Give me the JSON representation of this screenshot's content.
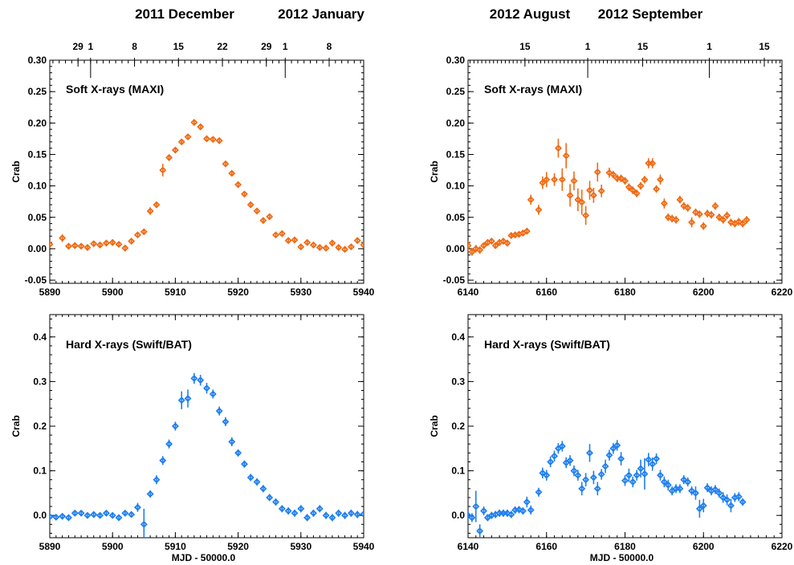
{
  "header": {
    "left_month_1": "2011 December",
    "left_month_2": "2012 January",
    "right_month_1": "2012 August",
    "right_month_2": "2012 September"
  },
  "chart_data": [
    {
      "type": "scatter",
      "panel": "top-left",
      "title": "Soft X-rays (MAXI)",
      "ylabel": "Crab",
      "xlabel": "",
      "xlim": [
        5890,
        5940
      ],
      "ylim": [
        -0.055,
        0.3
      ],
      "xticks": [
        5890,
        5900,
        5910,
        5920,
        5930,
        5940
      ],
      "yticks": [
        -0.05,
        0.0,
        0.05,
        0.1,
        0.15,
        0.2,
        0.25,
        0.3
      ],
      "ytick_labels": [
        "-0.05",
        "0.00",
        "0.05",
        "0.10",
        "0.15",
        "0.20",
        "0.25",
        "0.30"
      ],
      "top_ticks": [
        {
          "mjd": 5894.5,
          "label": "29"
        },
        {
          "mjd": 5896.5,
          "label": "1"
        },
        {
          "mjd": 5903.5,
          "label": "8"
        },
        {
          "mjd": 5910.5,
          "label": "15"
        },
        {
          "mjd": 5917.5,
          "label": "22"
        },
        {
          "mjd": 5924.5,
          "label": "29"
        },
        {
          "mjd": 5927.5,
          "label": "1"
        },
        {
          "mjd": 5934.5,
          "label": "8"
        }
      ],
      "color": "#f06a14",
      "series": [
        {
          "x": [
            5890,
            5892,
            5893,
            5894,
            5895,
            5896,
            5897,
            5898,
            5899,
            5900,
            5901,
            5902,
            5903,
            5904,
            5905,
            5906,
            5907,
            5908,
            5909,
            5910,
            5911,
            5912,
            5913,
            5914,
            5915,
            5916,
            5917,
            5918,
            5919,
            5920,
            5921,
            5922,
            5923,
            5924,
            5925,
            5926,
            5927,
            5928,
            5929,
            5930,
            5931,
            5932,
            5933,
            5934,
            5935,
            5936,
            5937,
            5938,
            5939,
            5940
          ],
          "y": [
            0.007,
            0.017,
            0.004,
            0.005,
            0.004,
            0.002,
            0.008,
            0.006,
            0.009,
            0.01,
            0.007,
            0.001,
            0.012,
            0.022,
            0.027,
            0.06,
            0.07,
            0.125,
            0.145,
            0.157,
            0.17,
            0.178,
            0.201,
            0.194,
            0.175,
            0.174,
            0.172,
            0.135,
            0.12,
            0.102,
            0.087,
            0.07,
            0.06,
            0.045,
            0.051,
            0.022,
            0.024,
            0.013,
            0.014,
            0.003,
            0.01,
            0.006,
            0.002,
            0.001,
            0.009,
            0.002,
            -0.001,
            0.003,
            0.013,
            0.006
          ],
          "err": [
            0.004,
            0.006,
            0.004,
            0.004,
            0.004,
            0.004,
            0.004,
            0.004,
            0.004,
            0.004,
            0.004,
            0.004,
            0.004,
            0.004,
            0.004,
            0.006,
            0.004,
            0.01,
            0.004,
            0.004,
            0.004,
            0.004,
            0.004,
            0.004,
            0.004,
            0.004,
            0.004,
            0.004,
            0.004,
            0.004,
            0.004,
            0.004,
            0.004,
            0.004,
            0.004,
            0.004,
            0.004,
            0.004,
            0.004,
            0.004,
            0.004,
            0.004,
            0.004,
            0.004,
            0.004,
            0.004,
            0.004,
            0.004,
            0.004,
            0.004
          ]
        }
      ]
    },
    {
      "type": "scatter",
      "panel": "top-right",
      "title": "Soft X-rays (MAXI)",
      "ylabel": "Crab",
      "xlabel": "",
      "xlim": [
        6140,
        6220
      ],
      "ylim": [
        -0.055,
        0.3
      ],
      "xticks": [
        6140,
        6160,
        6180,
        6200,
        6220
      ],
      "yticks": [
        -0.05,
        0.0,
        0.05,
        0.1,
        0.15,
        0.2,
        0.25,
        0.3
      ],
      "ytick_labels": [
        "-0.05",
        "0.00",
        "0.05",
        "0.10",
        "0.15",
        "0.20",
        "0.25",
        "0.30"
      ],
      "top_ticks": [
        {
          "mjd": 6154.5,
          "label": "15"
        },
        {
          "mjd": 6170.5,
          "label": "1"
        },
        {
          "mjd": 6184.5,
          "label": "15"
        },
        {
          "mjd": 6201.5,
          "label": "1"
        },
        {
          "mjd": 6215.5,
          "label": "15"
        }
      ],
      "color": "#f06a14",
      "series": [
        {
          "x": [
            6140,
            6141,
            6142,
            6143,
            6144,
            6145,
            6146,
            6147,
            6148,
            6149,
            6150,
            6151,
            6152,
            6153,
            6154,
            6155,
            6156,
            6158,
            6159,
            6160,
            6162,
            6163,
            6164,
            6165,
            6166,
            6167,
            6168,
            6169,
            6170,
            6171,
            6172,
            6173,
            6174,
            6176,
            6177,
            6178,
            6179,
            6180,
            6181,
            6182,
            6183,
            6184,
            6185,
            6186,
            6187,
            6188,
            6189,
            6190,
            6191,
            6192,
            6193,
            6194,
            6195,
            6196,
            6197,
            6198,
            6199,
            6200,
            6201,
            6202,
            6203,
            6204,
            6205,
            6206,
            6207,
            6208,
            6209,
            6210,
            6211
          ],
          "y": [
            0.005,
            -0.005,
            0.0,
            -0.002,
            0.005,
            0.01,
            0.012,
            0.005,
            0.01,
            0.012,
            0.009,
            0.021,
            0.022,
            0.023,
            0.025,
            0.028,
            0.078,
            0.062,
            0.105,
            0.11,
            0.11,
            0.16,
            0.11,
            0.148,
            0.085,
            0.108,
            0.078,
            0.074,
            0.053,
            0.093,
            0.085,
            0.122,
            0.092,
            0.121,
            0.118,
            0.112,
            0.112,
            0.108,
            0.098,
            0.093,
            0.088,
            0.1,
            0.11,
            0.136,
            0.136,
            0.095,
            0.11,
            0.072,
            0.05,
            0.048,
            0.046,
            0.078,
            0.068,
            0.065,
            0.042,
            0.058,
            0.055,
            0.036,
            0.056,
            0.054,
            0.068,
            0.05,
            0.046,
            0.053,
            0.042,
            0.04,
            0.043,
            0.04,
            0.046
          ],
          "err": [
            0.008,
            0.006,
            0.006,
            0.006,
            0.005,
            0.005,
            0.005,
            0.005,
            0.005,
            0.005,
            0.005,
            0.005,
            0.005,
            0.005,
            0.005,
            0.005,
            0.008,
            0.008,
            0.01,
            0.012,
            0.01,
            0.015,
            0.018,
            0.02,
            0.018,
            0.015,
            0.018,
            0.02,
            0.015,
            0.015,
            0.012,
            0.015,
            0.01,
            0.008,
            0.006,
            0.006,
            0.006,
            0.006,
            0.006,
            0.006,
            0.006,
            0.006,
            0.006,
            0.008,
            0.008,
            0.006,
            0.008,
            0.008,
            0.006,
            0.006,
            0.006,
            0.006,
            0.006,
            0.006,
            0.008,
            0.006,
            0.006,
            0.006,
            0.006,
            0.006,
            0.006,
            0.006,
            0.006,
            0.006,
            0.006,
            0.006,
            0.006,
            0.006,
            0.006
          ]
        }
      ]
    },
    {
      "type": "scatter",
      "panel": "bottom-left",
      "title": "Hard X-rays (Swift/BAT)",
      "ylabel": "Crab",
      "xlabel": "MJD -  50000.0",
      "xlim": [
        5890,
        5940
      ],
      "ylim": [
        -0.05,
        0.45
      ],
      "xticks": [
        5890,
        5900,
        5910,
        5920,
        5930,
        5940
      ],
      "yticks": [
        0.0,
        0.1,
        0.2,
        0.3,
        0.4
      ],
      "ytick_labels": [
        "0.0",
        "0.1",
        "0.2",
        "0.3",
        "0.4"
      ],
      "color": "#1f7ff0",
      "series": [
        {
          "x": [
            5890,
            5891,
            5892,
            5893,
            5894,
            5895,
            5896,
            5897,
            5898,
            5899,
            5900,
            5901,
            5902,
            5903,
            5904,
            5905,
            5906,
            5907,
            5908,
            5909,
            5910,
            5911,
            5912,
            5913,
            5914,
            5915,
            5916,
            5917,
            5918,
            5919,
            5920,
            5921,
            5922,
            5923,
            5924,
            5925,
            5926,
            5927,
            5928,
            5929,
            5930,
            5931,
            5932,
            5933,
            5934,
            5935,
            5936,
            5937,
            5938,
            5939,
            5940
          ],
          "y": [
            -0.003,
            -0.004,
            -0.002,
            -0.005,
            0.005,
            0.005,
            0.0,
            0.002,
            0.0,
            0.005,
            0.0,
            -0.005,
            0.005,
            0.002,
            0.018,
            -0.02,
            0.048,
            0.08,
            0.123,
            0.16,
            0.2,
            0.258,
            0.262,
            0.307,
            0.303,
            0.285,
            0.272,
            0.234,
            0.21,
            0.165,
            0.14,
            0.115,
            0.085,
            0.075,
            0.06,
            0.04,
            0.03,
            0.015,
            0.01,
            0.005,
            0.015,
            -0.005,
            0.005,
            0.015,
            0.0,
            -0.005,
            0.005,
            0.0,
            0.005,
            0.002,
            0.003
          ],
          "err": [
            0.006,
            0.006,
            0.006,
            0.006,
            0.006,
            0.006,
            0.006,
            0.006,
            0.006,
            0.006,
            0.006,
            0.006,
            0.006,
            0.006,
            0.01,
            0.035,
            0.008,
            0.01,
            0.01,
            0.01,
            0.01,
            0.02,
            0.02,
            0.012,
            0.012,
            0.012,
            0.01,
            0.01,
            0.01,
            0.01,
            0.008,
            0.008,
            0.008,
            0.008,
            0.008,
            0.008,
            0.008,
            0.008,
            0.008,
            0.008,
            0.008,
            0.008,
            0.008,
            0.008,
            0.008,
            0.008,
            0.008,
            0.008,
            0.008,
            0.008,
            0.008
          ]
        }
      ]
    },
    {
      "type": "scatter",
      "panel": "bottom-right",
      "title": "Hard X-rays (Swift/BAT)",
      "ylabel": "Crab",
      "xlabel": "MJD -  50000.0",
      "xlim": [
        6140,
        6220
      ],
      "ylim": [
        -0.05,
        0.45
      ],
      "xticks": [
        6140,
        6160,
        6180,
        6200,
        6220
      ],
      "yticks": [
        0.0,
        0.1,
        0.2,
        0.3,
        0.4
      ],
      "ytick_labels": [
        "0.0",
        "0.1",
        "0.2",
        "0.3",
        "0.4"
      ],
      "color": "#1f7ff0",
      "series": [
        {
          "x": [
            6140,
            6141,
            6142,
            6143,
            6144,
            6145,
            6146,
            6147,
            6148,
            6149,
            6150,
            6151,
            6152,
            6153,
            6154,
            6155,
            6156,
            6158,
            6159,
            6160,
            6161,
            6162,
            6163,
            6164,
            6165,
            6166,
            6167,
            6168,
            6169,
            6170,
            6171,
            6172,
            6173,
            6174,
            6175,
            6176,
            6177,
            6178,
            6179,
            6180,
            6181,
            6182,
            6183,
            6184,
            6185,
            6186,
            6187,
            6188,
            6189,
            6190,
            6191,
            6192,
            6193,
            6194,
            6195,
            6196,
            6197,
            6198,
            6199,
            6200,
            6201,
            6202,
            6203,
            6204,
            6205,
            6206,
            6207,
            6208,
            6209,
            6210
          ],
          "y": [
            0.0,
            -0.005,
            0.02,
            -0.035,
            0.01,
            -0.005,
            0.0,
            0.002,
            0.005,
            0.005,
            0.005,
            0.002,
            0.012,
            0.013,
            0.01,
            0.03,
            0.012,
            0.052,
            0.095,
            0.09,
            0.12,
            0.133,
            0.15,
            0.155,
            0.118,
            0.123,
            0.1,
            0.09,
            0.06,
            0.08,
            0.14,
            0.085,
            0.06,
            0.092,
            0.11,
            0.135,
            0.15,
            0.157,
            0.127,
            0.078,
            0.09,
            0.075,
            0.09,
            0.105,
            0.093,
            0.125,
            0.115,
            0.127,
            0.09,
            0.075,
            0.068,
            0.055,
            0.06,
            0.06,
            0.08,
            0.075,
            0.055,
            0.05,
            0.015,
            0.022,
            0.062,
            0.055,
            0.058,
            0.05,
            0.04,
            0.035,
            0.022,
            0.04,
            0.042,
            0.03
          ],
          "err": [
            0.01,
            0.01,
            0.035,
            0.015,
            0.01,
            0.008,
            0.008,
            0.008,
            0.008,
            0.008,
            0.008,
            0.008,
            0.008,
            0.008,
            0.008,
            0.012,
            0.01,
            0.01,
            0.012,
            0.012,
            0.012,
            0.012,
            0.012,
            0.012,
            0.012,
            0.012,
            0.012,
            0.012,
            0.015,
            0.015,
            0.02,
            0.015,
            0.015,
            0.012,
            0.015,
            0.012,
            0.012,
            0.012,
            0.015,
            0.012,
            0.015,
            0.012,
            0.012,
            0.02,
            0.035,
            0.015,
            0.015,
            0.012,
            0.012,
            0.012,
            0.012,
            0.01,
            0.01,
            0.01,
            0.01,
            0.01,
            0.01,
            0.015,
            0.02,
            0.015,
            0.01,
            0.01,
            0.01,
            0.01,
            0.012,
            0.012,
            0.015,
            0.01,
            0.01,
            0.008
          ]
        }
      ]
    }
  ]
}
